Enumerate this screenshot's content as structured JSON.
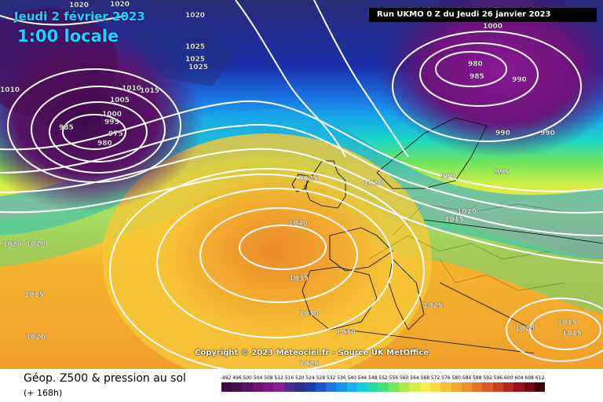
{
  "header": {
    "date_line": "Jeudi 2 février 2023",
    "time_line": "1:00 locale",
    "run_info": "Run UKMO 0 Z du Jeudi 26 janvier 2023"
  },
  "copyright": "Copyright © 2023 Meteociel.fr - Source UK MetOffice",
  "footer": {
    "title": "Géop. Z500 & pression au sol",
    "subtitle": "(+ 168h)"
  },
  "legend": {
    "values": [
      "492",
      "496",
      "500",
      "504",
      "508",
      "512",
      "516",
      "520",
      "524",
      "528",
      "532",
      "536",
      "540",
      "544",
      "548",
      "552",
      "556",
      "560",
      "564",
      "568",
      "572",
      "576",
      "580",
      "584",
      "588",
      "592",
      "596",
      "600",
      "604",
      "608",
      "612"
    ],
    "colors": [
      "#3b0a45",
      "#4a0d55",
      "#5a1064",
      "#6a1474",
      "#7a1884",
      "#8a1c94",
      "#4b2c8f",
      "#2a2d8c",
      "#1f3ba8",
      "#1f55c8",
      "#1b74e0",
      "#1794ea",
      "#12b4ea",
      "#10d0d8",
      "#22dbaa",
      "#44e27a",
      "#7ae65a",
      "#aeea4a",
      "#d8ee48",
      "#f4ee4a",
      "#fadc3e",
      "#f7c433",
      "#f2aa2c",
      "#ec8f2a",
      "#e47428",
      "#dc5a26",
      "#cc3e24",
      "#b42622",
      "#961418",
      "#6c0a10",
      "#3a0508"
    ]
  },
  "isobars": [
    {
      "text": "1020"
    },
    {
      "text": "1020"
    },
    {
      "text": "1020"
    },
    {
      "text": "1020"
    },
    {
      "text": "1025"
    },
    {
      "text": "1025"
    },
    {
      "text": "1025"
    },
    {
      "text": "1010"
    },
    {
      "text": "1015"
    },
    {
      "text": "1005"
    },
    {
      "text": "1000"
    },
    {
      "text": "995"
    },
    {
      "text": "975"
    },
    {
      "text": "980"
    },
    {
      "text": "985"
    },
    {
      "text": "1010"
    },
    {
      "text": "1000"
    },
    {
      "text": "980"
    },
    {
      "text": "985"
    },
    {
      "text": "990"
    },
    {
      "text": "990"
    },
    {
      "text": "990"
    },
    {
      "text": "990"
    },
    {
      "text": "995"
    },
    {
      "text": "1025"
    },
    {
      "text": "1020"
    },
    {
      "text": "1010"
    },
    {
      "text": "1015"
    },
    {
      "text": "1020"
    },
    {
      "text": "1040"
    },
    {
      "text": "1035"
    },
    {
      "text": "1030"
    },
    {
      "text": "1030"
    },
    {
      "text": "1025"
    },
    {
      "text": "1015"
    },
    {
      "text": "1020"
    },
    {
      "text": "1025"
    },
    {
      "text": "1020"
    },
    {
      "text": "1015"
    },
    {
      "text": "1015"
    }
  ]
}
